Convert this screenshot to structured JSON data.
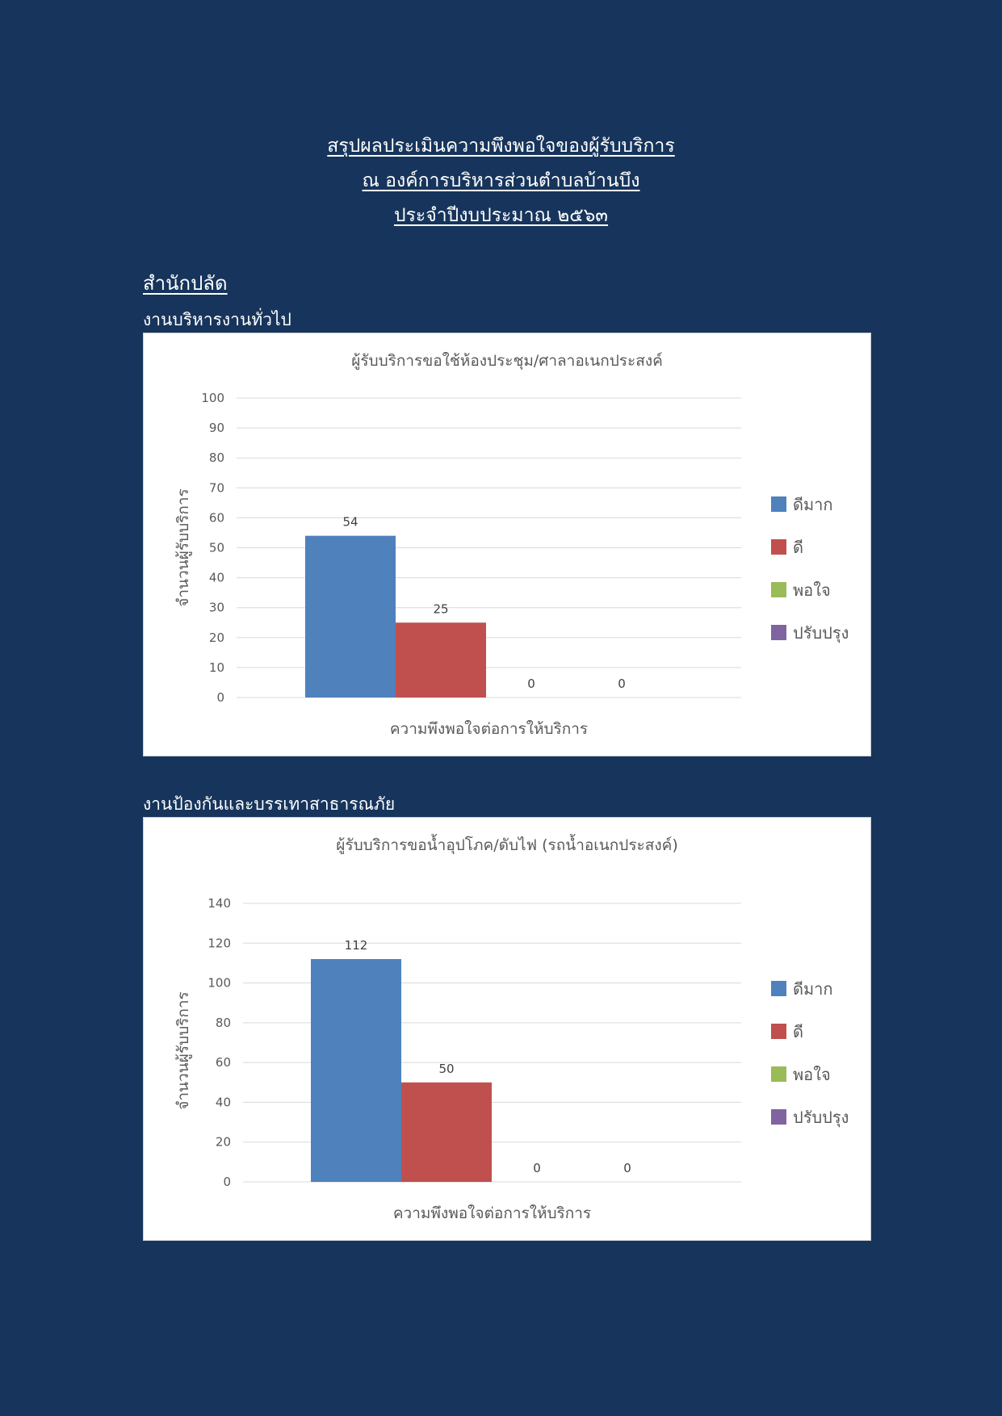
{
  "header": {
    "line1": "สรุปผลประเมินความพึงพอใจของผู้รับบริการ",
    "line2": "ณ องค์การบริหารส่วนตำบลบ้านบึง",
    "line3": "ประจำปีงบประมาณ ๒๕๖๓"
  },
  "section": {
    "title": "สำนักปลัด",
    "sub1": "งานบริหารงานทั่วไป",
    "sub2": "งานป้องกันและบรรเทาสาธารณภัย"
  },
  "colors": {
    "background": "#17355c",
    "series": [
      "#4f81bd",
      "#c0504d",
      "#9bbb59",
      "#8064a2"
    ],
    "gridline": "#d9d9d9",
    "text": "#595959"
  },
  "chart_data": [
    {
      "type": "bar",
      "title": "ผู้รับบริการขอใช้ห้องประชุม/ศาลาอเนกประสงค์",
      "xlabel": "ความพึงพอใจต่อการให้บริการ",
      "ylabel": "จำนวนผู้รับบริการ",
      "ylim": [
        0,
        100
      ],
      "yticks": [
        0,
        10,
        20,
        30,
        40,
        50,
        60,
        70,
        80,
        90,
        100
      ],
      "grid": true,
      "legend": "right",
      "series": [
        {
          "name": "ดีมาก",
          "values": [
            54
          ]
        },
        {
          "name": "ดี",
          "values": [
            25
          ]
        },
        {
          "name": "พอใจ",
          "values": [
            0
          ]
        },
        {
          "name": "ปรับปรุง",
          "values": [
            0
          ]
        }
      ]
    },
    {
      "type": "bar",
      "title": "ผู้รับบริการขอน้ำอุปโภค/ดับไฟ (รถน้ำอเนกประสงค์)",
      "xlabel": "ความพึงพอใจต่อการให้บริการ",
      "ylabel": "จำนวนผู้รับบริการ",
      "ylim": [
        0,
        140
      ],
      "yticks": [
        0,
        20,
        40,
        60,
        80,
        100,
        120,
        140
      ],
      "grid": true,
      "legend": "right",
      "series": [
        {
          "name": "ดีมาก",
          "values": [
            112
          ]
        },
        {
          "name": "ดี",
          "values": [
            50
          ]
        },
        {
          "name": "พอใจ",
          "values": [
            0
          ]
        },
        {
          "name": "ปรับปรุง",
          "values": [
            0
          ]
        }
      ]
    }
  ]
}
